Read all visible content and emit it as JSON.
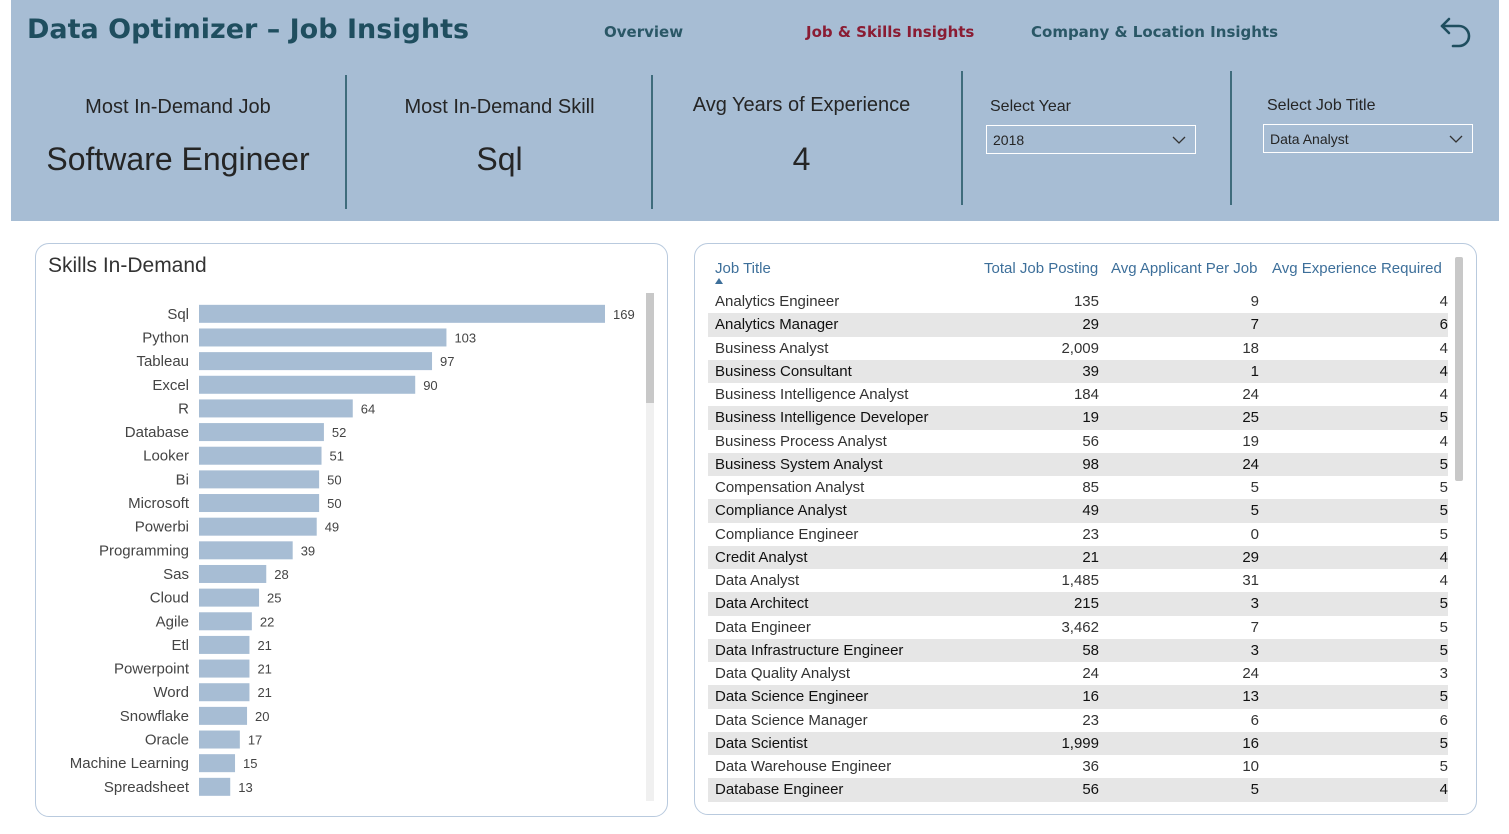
{
  "header": {
    "title": "Data Optimizer – Job Insights",
    "nav": [
      {
        "label": "Overview"
      },
      {
        "label": "Job & Skills Insights",
        "active": true
      },
      {
        "label": "Company & Location Insights"
      }
    ],
    "back_icon": "back-arrow-icon"
  },
  "kpis": {
    "job_label": "Most In-Demand Job",
    "job_value": "Software Engineer",
    "skill_label": "Most In-Demand Skill",
    "skill_value": "Sql",
    "exp_label": "Avg Years of Experience",
    "exp_value": "4"
  },
  "filters": {
    "year_label": "Select Year",
    "year_value": "2018",
    "title_label": "Select Job Title",
    "title_value": "Data Analyst"
  },
  "colors": {
    "header_bg": "#a7bdd4",
    "bar": "#a7bdd4",
    "active_nav": "#8a1c33",
    "title": "#1f4e5f"
  },
  "chart_data": {
    "type": "bar",
    "orientation": "horizontal",
    "title": "Skills In-Demand",
    "categories": [
      "Sql",
      "Python",
      "Tableau",
      "Excel",
      "R",
      "Database",
      "Looker",
      "Bi",
      "Microsoft",
      "Powerbi",
      "Programming",
      "Sas",
      "Cloud",
      "Agile",
      "Etl",
      "Powerpoint",
      "Word",
      "Snowflake",
      "Oracle",
      "Machine Learning",
      "Spreadsheet"
    ],
    "values": [
      169,
      103,
      97,
      90,
      64,
      52,
      51,
      50,
      50,
      49,
      39,
      28,
      25,
      22,
      21,
      21,
      21,
      20,
      17,
      15,
      13
    ],
    "data_labels": true,
    "grid": false
  },
  "table": {
    "headers": [
      "Job Title",
      "Total Job Posting",
      "Avg Applicant Per Job",
      "Avg Experience Required"
    ],
    "rows": [
      [
        "Analytics Engineer",
        "135",
        "9",
        "4"
      ],
      [
        "Analytics Manager",
        "29",
        "7",
        "6"
      ],
      [
        "Business Analyst",
        "2,009",
        "18",
        "4"
      ],
      [
        "Business Consultant",
        "39",
        "1",
        "4"
      ],
      [
        "Business Intelligence Analyst",
        "184",
        "24",
        "4"
      ],
      [
        "Business Intelligence Developer",
        "19",
        "25",
        "5"
      ],
      [
        "Business Process Analyst",
        "56",
        "19",
        "4"
      ],
      [
        "Business System Analyst",
        "98",
        "24",
        "5"
      ],
      [
        "Compensation Analyst",
        "85",
        "5",
        "5"
      ],
      [
        "Compliance Analyst",
        "49",
        "5",
        "5"
      ],
      [
        "Compliance Engineer",
        "23",
        "0",
        "5"
      ],
      [
        "Credit Analyst",
        "21",
        "29",
        "4"
      ],
      [
        "Data Analyst",
        "1,485",
        "31",
        "4"
      ],
      [
        "Data Architect",
        "215",
        "3",
        "5"
      ],
      [
        "Data Engineer",
        "3,462",
        "7",
        "5"
      ],
      [
        "Data Infrastructure Engineer",
        "58",
        "3",
        "5"
      ],
      [
        "Data Quality Analyst",
        "24",
        "24",
        "3"
      ],
      [
        "Data Science Engineer",
        "16",
        "13",
        "5"
      ],
      [
        "Data Science Manager",
        "23",
        "6",
        "6"
      ],
      [
        "Data Scientist",
        "1,999",
        "16",
        "5"
      ],
      [
        "Data Warehouse Engineer",
        "36",
        "10",
        "5"
      ],
      [
        "Database Engineer",
        "56",
        "5",
        "4"
      ]
    ]
  }
}
